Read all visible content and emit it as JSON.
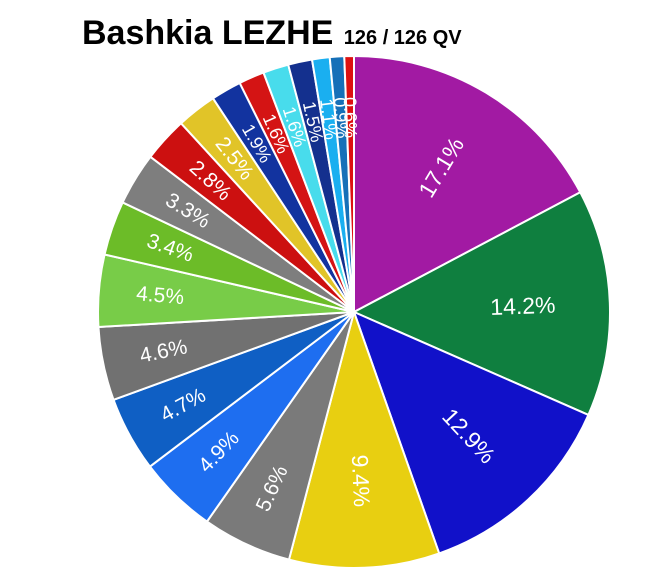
{
  "chart_data": {
    "type": "pie",
    "title": "Bashkia LEZHE",
    "subtitle": "126 / 126 QV",
    "slices": [
      {
        "value": 17.1,
        "label": "17.1%",
        "color": "#a21aa3"
      },
      {
        "value": 14.2,
        "label": "14.2%",
        "color": "#0f7f3f"
      },
      {
        "value": 12.9,
        "label": "12.9%",
        "color": "#1111c9"
      },
      {
        "value": 9.4,
        "label": "9.4%",
        "color": "#e8cf11"
      },
      {
        "value": 5.6,
        "label": "5.6%",
        "color": "#7a7a7a"
      },
      {
        "value": 4.9,
        "label": "4.9%",
        "color": "#1e6ef0"
      },
      {
        "value": 4.7,
        "label": "4.7%",
        "color": "#0f5fc4"
      },
      {
        "value": 4.6,
        "label": "4.6%",
        "color": "#717171"
      },
      {
        "value": 4.5,
        "label": "4.5%",
        "color": "#78cc48"
      },
      {
        "value": 3.4,
        "label": "3.4%",
        "color": "#6cbc28"
      },
      {
        "value": 3.3,
        "label": "3.3%",
        "color": "#7e7e7e"
      },
      {
        "value": 2.8,
        "label": "2.8%",
        "color": "#cc1010"
      },
      {
        "value": 2.5,
        "label": "2.5%",
        "color": "#e1c428"
      },
      {
        "value": 1.9,
        "label": "1.9%",
        "color": "#12339f"
      },
      {
        "value": 1.6,
        "label": "1.6%",
        "color": "#d41414"
      },
      {
        "value": 1.6,
        "label": "1.6%",
        "color": "#48dcec"
      },
      {
        "value": 1.5,
        "label": "1.5%",
        "color": "#14308e"
      },
      {
        "value": 1.1,
        "label": "1.1%",
        "color": "#1aaff0"
      },
      {
        "value": 0.9,
        "label": "0.9%",
        "color": "#1670b8"
      },
      {
        "value": 0.6,
        "label": "0.6%",
        "color": "#dd1111"
      }
    ]
  }
}
